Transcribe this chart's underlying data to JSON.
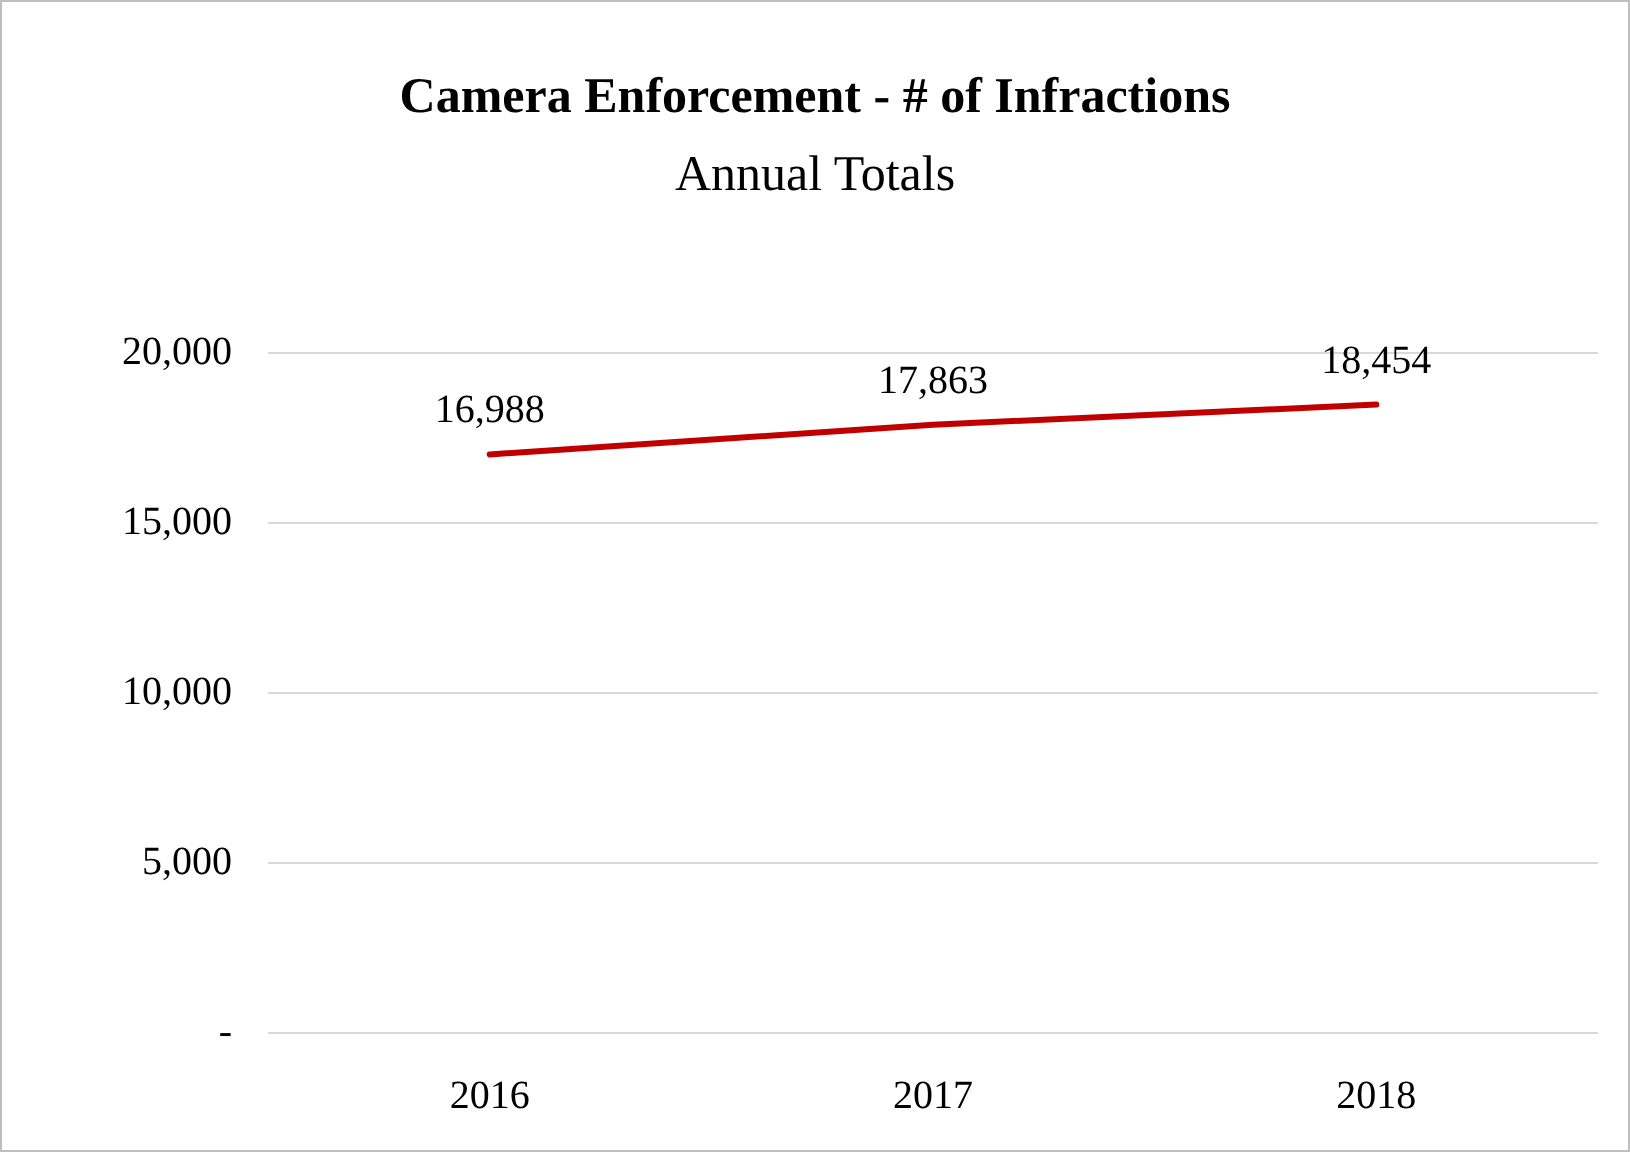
{
  "chart_data": {
    "type": "line",
    "title": "Camera Enforcement - # of Infractions",
    "subtitle": "Annual Totals",
    "categories": [
      "2016",
      "2017",
      "2018"
    ],
    "series": [
      {
        "color": "#c00000",
        "values": [
          16988,
          17863,
          18454
        ],
        "value_labels": [
          "16,988",
          "17,863",
          "18,454"
        ]
      }
    ],
    "ylim": [
      0,
      20000
    ],
    "yticks": [
      {
        "value": 0,
        "label": "-"
      },
      {
        "value": 5000,
        "label": "5,000"
      },
      {
        "value": 10000,
        "label": "10,000"
      },
      {
        "value": 15000,
        "label": "15,000"
      },
      {
        "value": 20000,
        "label": "20,000"
      }
    ],
    "grid": "y",
    "marker": "none",
    "line_style": "solid"
  }
}
